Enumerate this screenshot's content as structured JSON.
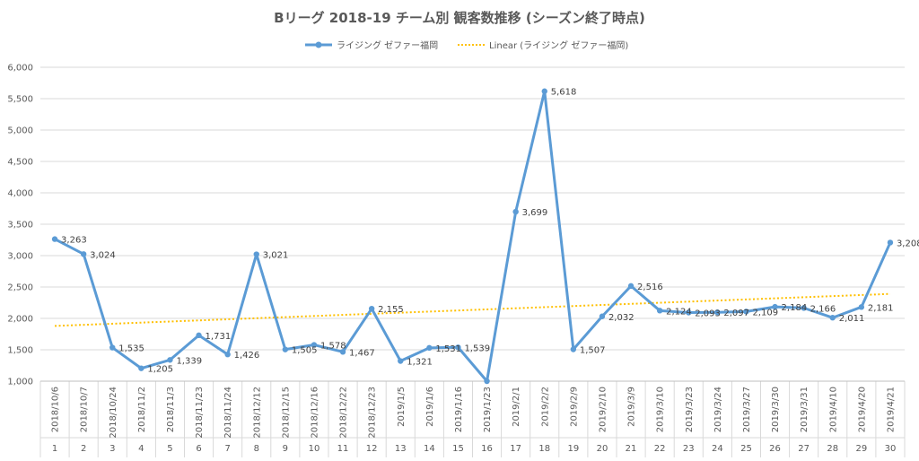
{
  "chart_data": {
    "type": "line",
    "title": "Bリーグ 2018-19 チーム別 観客数推移 (シーズン終了時点)",
    "ylim": [
      1000,
      6000
    ],
    "yticks": [
      "1,000",
      "1,500",
      "2,000",
      "2,500",
      "3,000",
      "3,500",
      "4,000",
      "4,500",
      "5,000",
      "5,500",
      "6,000"
    ],
    "ytick_values": [
      1000,
      1500,
      2000,
      2500,
      3000,
      3500,
      4000,
      4500,
      5000,
      5500,
      6000
    ],
    "legend_position": "top",
    "grid": true,
    "categories": [
      "2018/10/6",
      "2018/10/7",
      "2018/10/24",
      "2018/11/2",
      "2018/11/3",
      "2018/11/23",
      "2018/11/24",
      "2018/12/12",
      "2018/12/15",
      "2018/12/16",
      "2018/12/22",
      "2018/12/23",
      "2019/1/5",
      "2019/1/6",
      "2019/1/16",
      "2019/1/23",
      "2019/2/1",
      "2019/2/2",
      "2019/2/9",
      "2019/2/10",
      "2019/3/9",
      "2019/3/10",
      "2019/3/23",
      "2019/3/24",
      "2019/3/27",
      "2019/3/30",
      "2019/3/31",
      "2019/4/10",
      "2019/4/20",
      "2019/4/21"
    ],
    "index_labels": [
      "1",
      "2",
      "3",
      "4",
      "5",
      "6",
      "7",
      "8",
      "9",
      "10",
      "11",
      "12",
      "13",
      "14",
      "15",
      "16",
      "17",
      "18",
      "19",
      "20",
      "21",
      "22",
      "23",
      "24",
      "25",
      "26",
      "27",
      "28",
      "29",
      "30"
    ],
    "series": [
      {
        "name": "ライジング ゼファー福岡",
        "color": "#5b9bd5",
        "values": [
          3263,
          3024,
          1535,
          1205,
          1339,
          1731,
          1426,
          3021,
          1505,
          1578,
          1467,
          2155,
          1321,
          1531,
          1539,
          940,
          3699,
          5618,
          1507,
          2032,
          2516,
          2124,
          2093,
          2097,
          2109,
          2184,
          2166,
          2011,
          2181,
          3208
        ],
        "labels": [
          "3,263",
          "3,024",
          "1,535",
          "1,205",
          "1,339",
          "1,731",
          "1,426",
          "3,021",
          "1,505",
          "1,578",
          "1,467",
          "2,155",
          "1,321",
          "1,531",
          "1,539",
          "",
          "3,699",
          "5,618",
          "1,507",
          "2,032",
          "2,516",
          "2,124",
          "2,093",
          "2,097",
          "2,109",
          "2,184",
          "2,166",
          "2,011",
          "2,181",
          "3,208"
        ]
      }
    ],
    "trendline": {
      "name": "Linear (ライジング ゼファー福岡)",
      "color": "#ffc000",
      "start": 1880,
      "end": 2390
    }
  }
}
